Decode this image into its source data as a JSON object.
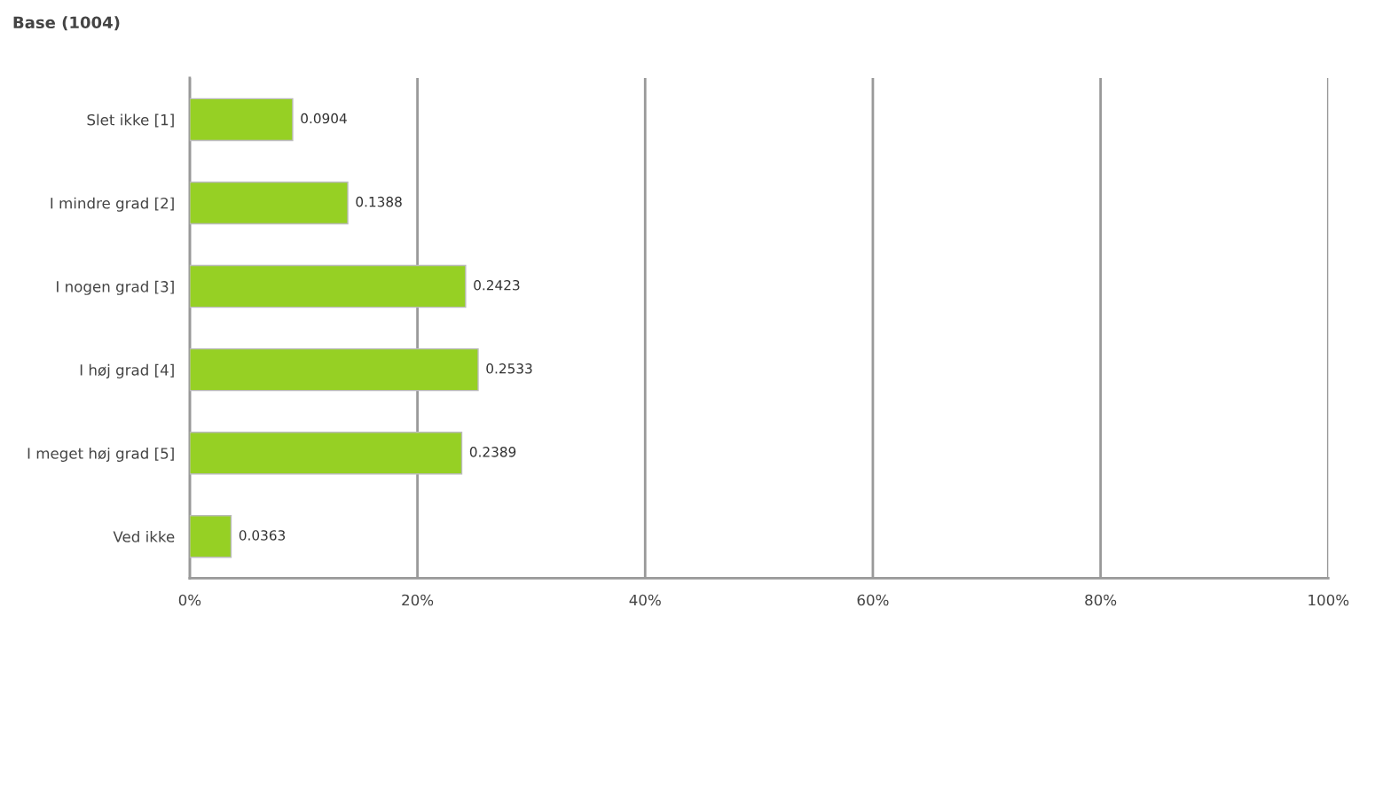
{
  "chart_data": {
    "type": "bar",
    "orientation": "horizontal",
    "title": "Base (1004)",
    "categories": [
      "Slet ikke [1]",
      "I mindre grad [2]",
      "I nogen grad [3]",
      "I høj grad [4]",
      "I meget høj grad [5]",
      "Ved ikke"
    ],
    "values": [
      0.0904,
      0.1388,
      0.2423,
      0.2533,
      0.2389,
      0.0363
    ],
    "color": "#96d024",
    "xlim": [
      0,
      1
    ],
    "xticks": [
      {
        "value": 0,
        "label": "0%"
      },
      {
        "value": 0.2,
        "label": "20%"
      },
      {
        "value": 0.4,
        "label": "40%"
      },
      {
        "value": 0.6,
        "label": "60%"
      },
      {
        "value": 0.8,
        "label": "80%"
      },
      {
        "value": 1,
        "label": "100%"
      }
    ],
    "grid": "x",
    "data_labels": true,
    "legend": false
  }
}
